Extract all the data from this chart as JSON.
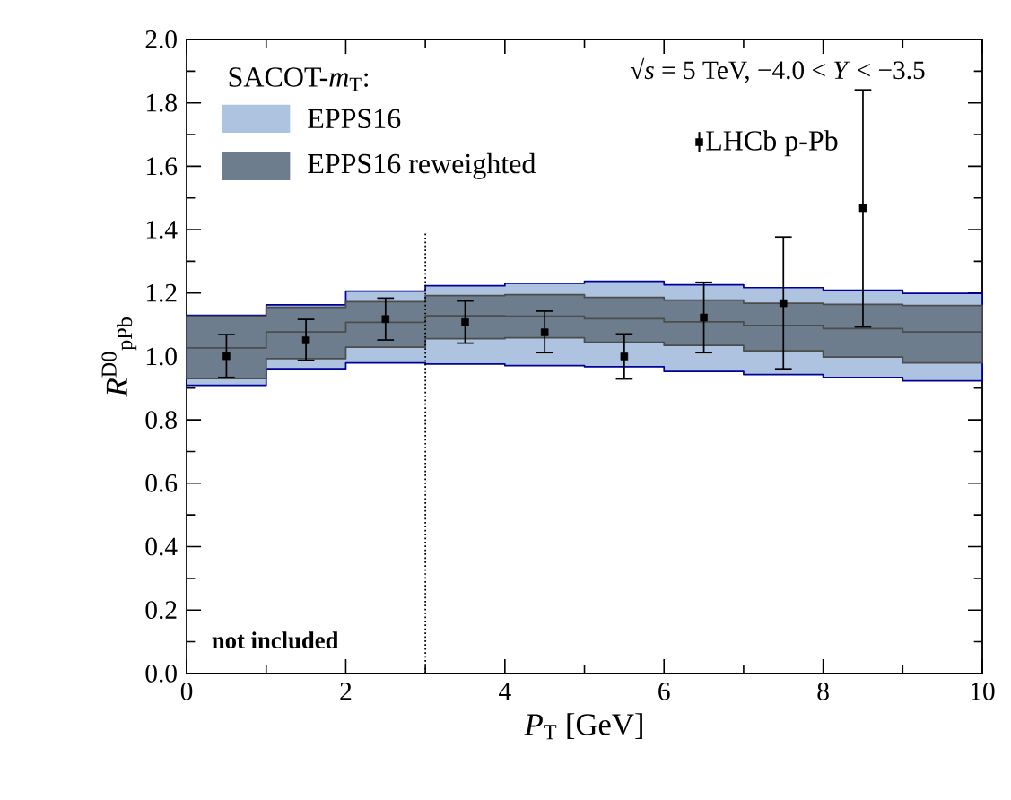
{
  "chart_data": {
    "type": "step",
    "xlabel": "*P*$_{T}$ [GeV]",
    "ylabel": "*R*$^{D0}$$_{pPb}$",
    "legend_title": "SACOT-*m*$_{T}$:",
    "annotations": [
      "not included",
      "√*s* = 5 TeV, −4.0 < *Y* < −3.5"
    ],
    "xlim": [
      0,
      10
    ],
    "ylim": [
      0,
      2
    ],
    "xticks": [
      0,
      2,
      4,
      6,
      8,
      10
    ],
    "yticks": [
      {
        "value": 0,
        "label": "0.0"
      },
      {
        "value": 0.2,
        "label": "0.2"
      },
      {
        "value": 0.4,
        "label": "0.4"
      },
      {
        "value": 0.6,
        "label": "0.6"
      },
      {
        "value": 0.8,
        "label": "0.8"
      },
      {
        "value": 1,
        "label": "1.0"
      },
      {
        "value": 1.2,
        "label": "1.2"
      },
      {
        "value": 1.4,
        "label": "1.4"
      },
      {
        "value": 1.6,
        "label": "1.6"
      },
      {
        "value": 1.8,
        "label": "1.8"
      },
      {
        "value": 2,
        "label": "2.0"
      }
    ],
    "legend": "top left",
    "ref_lines": [
      {
        "axis": "x",
        "value": 3,
        "line_style": "dotted",
        "color": "#000000"
      }
    ],
    "series": [
      {
        "name": "EPPS16",
        "color": "#aec3e0",
        "x": [
          0,
          1,
          2,
          3,
          4,
          5,
          6,
          7,
          8,
          9,
          10
        ],
        "values": [
          null,
          null,
          null,
          null,
          null,
          null,
          null,
          null,
          null,
          null,
          null
        ],
        "lower": [
          0.909,
          0.961,
          0.98,
          0.976,
          0.971,
          0.968,
          0.953,
          0.943,
          0.934,
          0.923,
          0.923
        ],
        "upper": [
          1.13,
          1.163,
          1.206,
          1.223,
          1.231,
          1.237,
          1.226,
          1.217,
          1.209,
          1.199,
          1.199
        ]
      },
      {
        "name": "EPPS16 reweighted",
        "color": "#6e7d8e",
        "x": [
          0,
          1,
          2,
          3,
          4,
          5,
          6,
          7,
          8,
          9,
          10
        ],
        "values": [
          null,
          null,
          null,
          null,
          null,
          null,
          null,
          null,
          null,
          null,
          null
        ],
        "lower": [
          0.93,
          0.993,
          1.029,
          1.056,
          1.059,
          1.045,
          1.035,
          1.018,
          0.998,
          0.98,
          0.98
        ],
        "upper": [
          1.127,
          1.155,
          1.173,
          1.192,
          1.195,
          1.186,
          1.178,
          1.168,
          1.164,
          1.161,
          1.161
        ]
      },
      {
        "color": "#4c4c4c",
        "x": [
          0,
          1,
          2,
          3,
          4,
          5,
          6,
          7,
          8,
          9,
          10
        ],
        "values": [
          1.027,
          1.077,
          1.108,
          1.128,
          1.127,
          1.119,
          1.109,
          1.098,
          1.088,
          1.077,
          1.077
        ]
      },
      {
        "name": "LHCb p-Pb",
        "type": "scatter",
        "color": "#000000",
        "marker": "square",
        "x": [
          0.5,
          1.5,
          2.5,
          3.5,
          4.5,
          5.5,
          6.5,
          7.5,
          8.5
        ],
        "values": [
          1.001,
          1.051,
          1.118,
          1.108,
          1.076,
          1.0,
          1.123,
          1.168,
          1.468
        ],
        "errors": [
          [
            0.934,
            1.069
          ],
          [
            0.988,
            1.117
          ],
          [
            1.052,
            1.184
          ],
          [
            1.042,
            1.175
          ],
          [
            1.012,
            1.143
          ],
          [
            0.929,
            1.071
          ],
          [
            1.012,
            1.234
          ],
          [
            0.961,
            1.377
          ],
          [
            1.093,
            1.841
          ]
        ]
      }
    ]
  }
}
